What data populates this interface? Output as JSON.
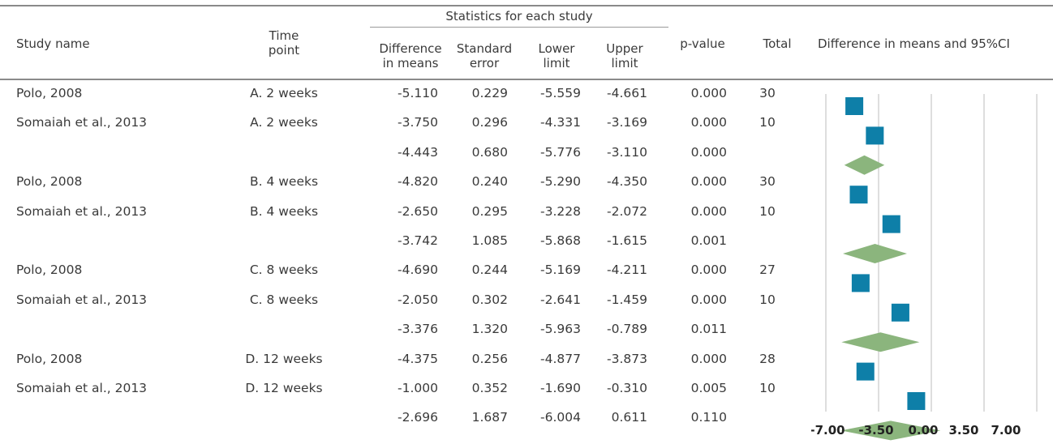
{
  "header": {
    "group_title": "Statistics for each study",
    "study_name": "Study name",
    "time_point_1": "Time",
    "time_point_2": "point",
    "diff_1": "Difference",
    "diff_2": "in means",
    "se_1": "Standard",
    "se_2": "error",
    "lower_1": "Lower",
    "lower_2": "limit",
    "upper_1": "Upper",
    "upper_2": "limit",
    "pvalue": "p-value",
    "total": "Total",
    "plot_title": "Difference in means and 95%CI"
  },
  "rows": [
    {
      "study": "Polo, 2008",
      "time": "A. 2 weeks",
      "diff": "-5.110",
      "se": "0.229",
      "lower": "-5.559",
      "upper": "-4.661",
      "p": "0.000",
      "total": "30"
    },
    {
      "study": "Somaiah et al., 2013",
      "time": "A. 2 weeks",
      "diff": "-3.750",
      "se": "0.296",
      "lower": "-4.331",
      "upper": "-3.169",
      "p": "0.000",
      "total": "10"
    },
    {
      "study": "",
      "time": "",
      "diff": "-4.443",
      "se": "0.680",
      "lower": "-5.776",
      "upper": "-3.110",
      "p": "0.000",
      "total": ""
    },
    {
      "study": "Polo, 2008",
      "time": "B. 4 weeks",
      "diff": "-4.820",
      "se": "0.240",
      "lower": "-5.290",
      "upper": "-4.350",
      "p": "0.000",
      "total": "30"
    },
    {
      "study": "Somaiah et al., 2013",
      "time": "B. 4 weeks",
      "diff": "-2.650",
      "se": "0.295",
      "lower": "-3.228",
      "upper": "-2.072",
      "p": "0.000",
      "total": "10"
    },
    {
      "study": "",
      "time": "",
      "diff": "-3.742",
      "se": "1.085",
      "lower": "-5.868",
      "upper": "-1.615",
      "p": "0.001",
      "total": ""
    },
    {
      "study": "Polo, 2008",
      "time": "C. 8 weeks",
      "diff": "-4.690",
      "se": "0.244",
      "lower": "-5.169",
      "upper": "-4.211",
      "p": "0.000",
      "total": "27"
    },
    {
      "study": "Somaiah et al., 2013",
      "time": "C. 8 weeks",
      "diff": "-2.050",
      "se": "0.302",
      "lower": "-2.641",
      "upper": "-1.459",
      "p": "0.000",
      "total": "10"
    },
    {
      "study": "",
      "time": "",
      "diff": "-3.376",
      "se": "1.320",
      "lower": "-5.963",
      "upper": "-0.789",
      "p": "0.011",
      "total": ""
    },
    {
      "study": "Polo, 2008",
      "time": "D. 12 weeks",
      "diff": "-4.375",
      "se": "0.256",
      "lower": "-4.877",
      "upper": "-3.873",
      "p": "0.000",
      "total": "28"
    },
    {
      "study": "Somaiah et al., 2013",
      "time": "D. 12 weeks",
      "diff": "-1.000",
      "se": "0.352",
      "lower": "-1.690",
      "upper": "-0.310",
      "p": "0.005",
      "total": "10"
    },
    {
      "study": "",
      "time": "",
      "diff": "-2.696",
      "se": "1.687",
      "lower": "-6.004",
      "upper": "0.611",
      "p": "0.110",
      "total": ""
    }
  ],
  "chart_data": {
    "type": "forest",
    "xlim": [
      -7.0,
      7.0
    ],
    "ticks": [
      "-7.00",
      "-3.50",
      "0.00",
      "3.50",
      "7.00"
    ],
    "tick_values": [
      -7.0,
      -3.5,
      0.0,
      3.5,
      7.0
    ],
    "study_color": "#0e7fa8",
    "summary_color": "#8bb57d",
    "gridline_color": "#bdbdbd",
    "points": [
      {
        "kind": "study",
        "diff": -5.11,
        "lower": -5.559,
        "upper": -4.661
      },
      {
        "kind": "study",
        "diff": -3.75,
        "lower": -4.331,
        "upper": -3.169
      },
      {
        "kind": "summary",
        "diff": -4.443,
        "lower": -5.776,
        "upper": -3.11
      },
      {
        "kind": "study",
        "diff": -4.82,
        "lower": -5.29,
        "upper": -4.35
      },
      {
        "kind": "study",
        "diff": -2.65,
        "lower": -3.228,
        "upper": -2.072
      },
      {
        "kind": "summary",
        "diff": -3.742,
        "lower": -5.868,
        "upper": -1.615
      },
      {
        "kind": "study",
        "diff": -4.69,
        "lower": -5.169,
        "upper": -4.211
      },
      {
        "kind": "study",
        "diff": -2.05,
        "lower": -2.641,
        "upper": -1.459
      },
      {
        "kind": "summary",
        "diff": -3.376,
        "lower": -5.963,
        "upper": -0.789
      },
      {
        "kind": "study",
        "diff": -4.375,
        "lower": -4.877,
        "upper": -3.873
      },
      {
        "kind": "study",
        "diff": -1.0,
        "lower": -1.69,
        "upper": -0.31
      },
      {
        "kind": "summary",
        "diff": -2.696,
        "lower": -6.004,
        "upper": 0.611
      }
    ]
  }
}
